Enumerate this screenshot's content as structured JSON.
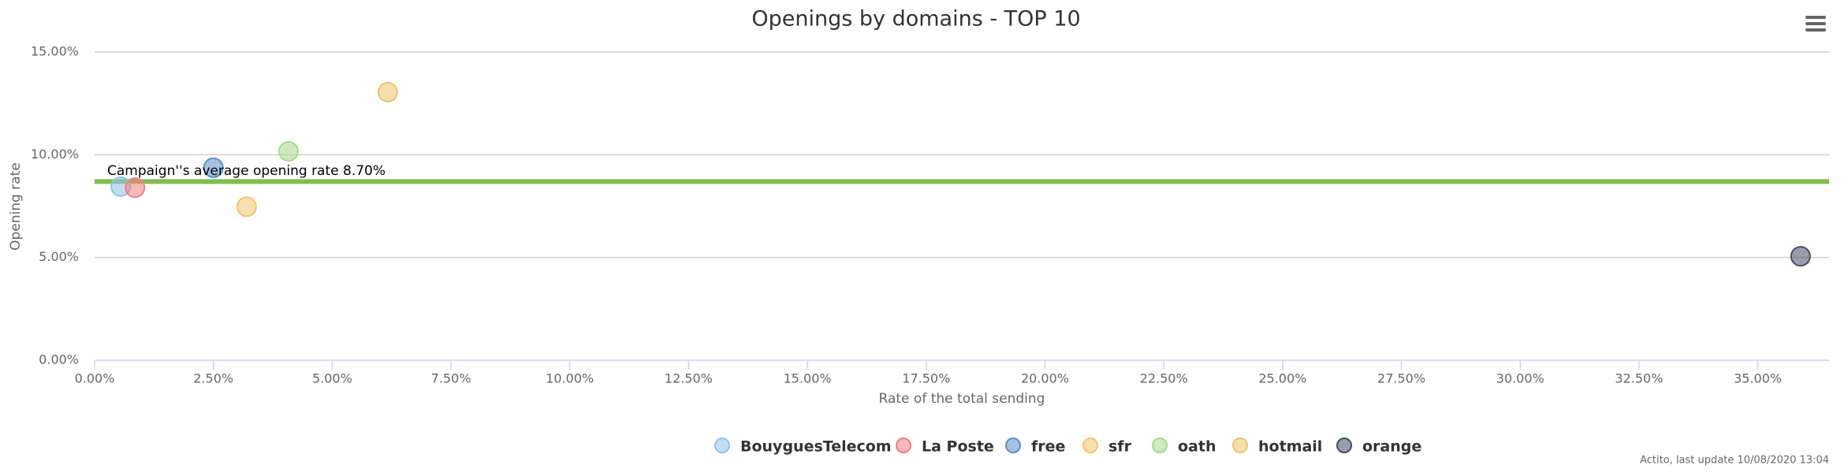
{
  "chart_data": {
    "type": "scatter",
    "title": "Openings by domains - TOP 10",
    "x_label": "Rate of the total sending",
    "y_label": "Opening rate",
    "xlim": [
      0,
      36.5
    ],
    "ylim": [
      0,
      15
    ],
    "xticks": [
      {
        "value": 0,
        "label": "0.00%"
      },
      {
        "value": 2.5,
        "label": "2.50%"
      },
      {
        "value": 5,
        "label": "5.00%"
      },
      {
        "value": 7.5,
        "label": "7.50%"
      },
      {
        "value": 10,
        "label": "10.00%"
      },
      {
        "value": 12.5,
        "label": "12.50%"
      },
      {
        "value": 15,
        "label": "15.00%"
      },
      {
        "value": 17.5,
        "label": "17.50%"
      },
      {
        "value": 20,
        "label": "20.00%"
      },
      {
        "value": 22.5,
        "label": "22.50%"
      },
      {
        "value": 25,
        "label": "25.00%"
      },
      {
        "value": 27.5,
        "label": "27.50%"
      },
      {
        "value": 30,
        "label": "30.00%"
      },
      {
        "value": 32.5,
        "label": "32.50%"
      },
      {
        "value": 35,
        "label": "35.00%"
      }
    ],
    "yticks": [
      {
        "value": 0,
        "label": "0.00%"
      },
      {
        "value": 5,
        "label": "5.00%"
      },
      {
        "value": 10,
        "label": "10.00%"
      },
      {
        "value": 15,
        "label": "15.00%"
      }
    ],
    "grid": true,
    "reference_line": {
      "value": 8.7,
      "label": "Campaign''s average opening rate 8.70%",
      "color": "#82bd4f"
    },
    "series": [
      {
        "name": "BouyguesTelecom",
        "color": "#8fc3ea",
        "x": [
          0.55
        ],
        "values": [
          8.45
        ]
      },
      {
        "name": "La Poste",
        "color": "#f08080",
        "x": [
          0.85
        ],
        "values": [
          8.4
        ]
      },
      {
        "name": "free",
        "color": "#5a8fc8",
        "x": [
          2.5
        ],
        "values": [
          9.37
        ]
      },
      {
        "name": "sfr",
        "color": "#f2c46e",
        "x": [
          3.2
        ],
        "values": [
          7.47
        ]
      },
      {
        "name": "oath",
        "color": "#a9d88a",
        "x": [
          4.08
        ],
        "values": [
          10.17
        ]
      },
      {
        "name": "hotmail",
        "color": "#f0c36a",
        "x": [
          6.17
        ],
        "values": [
          13.05
        ]
      },
      {
        "name": "orange",
        "color": "#474e66",
        "x": [
          35.9
        ],
        "values": [
          5.06
        ]
      }
    ],
    "footer": "Actito, last update 10/08/2020 13:04"
  }
}
